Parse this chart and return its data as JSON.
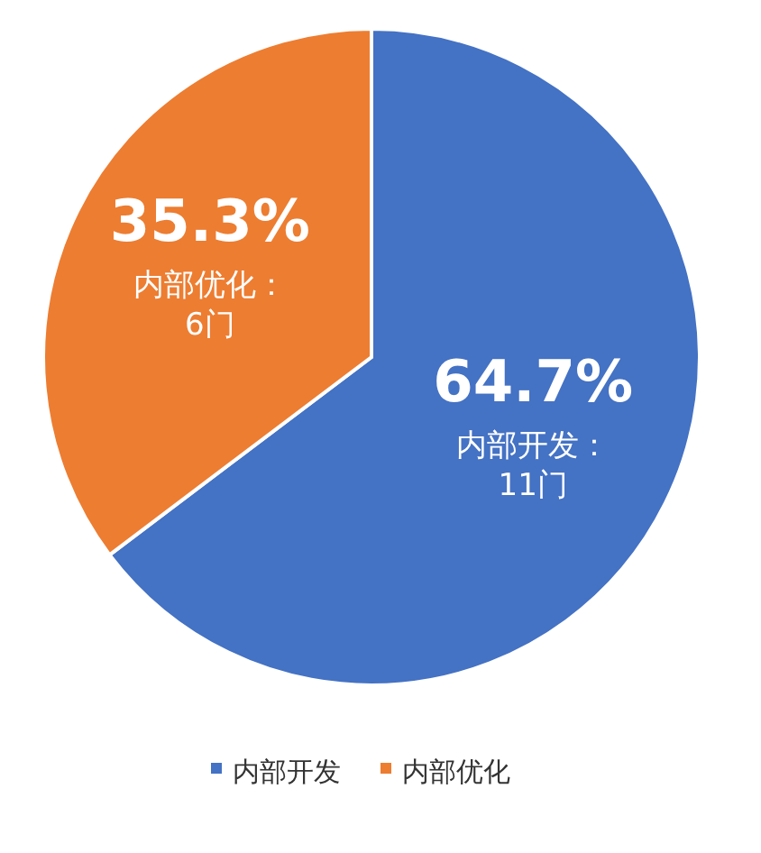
{
  "chart_data": {
    "type": "pie",
    "categories": [
      "内部开发",
      "内部优化"
    ],
    "values": [
      11,
      6
    ],
    "colors": [
      "#4472c4",
      "#ed7d31"
    ],
    "value_labels": [
      "64.7%\n内部开发：\n11门",
      "35.3%\n内部优化：\n6门"
    ],
    "legend": "bottom"
  }
}
